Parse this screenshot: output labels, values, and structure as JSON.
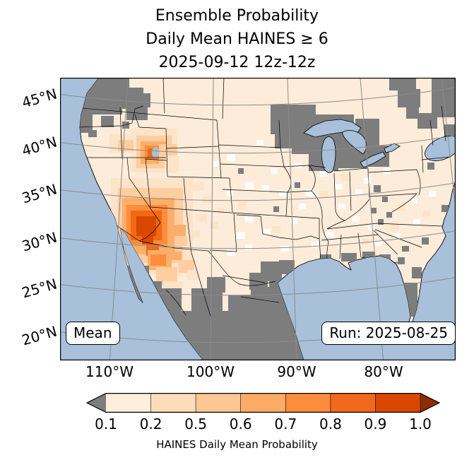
{
  "title": {
    "line1": "Ensemble Probability",
    "line2": "Daily Mean HAINES ≥ 6",
    "line3": "2025-09-12 12z-12z"
  },
  "map": {
    "lat_labels": [
      "45°N",
      "40°N",
      "35°N",
      "30°N",
      "25°N",
      "20°N"
    ],
    "lon_labels": [
      "110°W",
      "100°W",
      "90°W",
      "80°W"
    ],
    "mean_label": "Mean",
    "run_label": "Run: 2025-08-25"
  },
  "colorbar": {
    "ticks": [
      "0.1",
      "0.2",
      "0.5",
      "0.6",
      "0.7",
      "0.8",
      "0.9",
      "1.0"
    ],
    "label": "HAINES Daily Mean Probability",
    "segment_colors": [
      "#feeedd",
      "#fddcbc",
      "#fdc793",
      "#fdab67",
      "#fd8c3c",
      "#f1691d",
      "#d94801"
    ],
    "under_color": "#7d7d7d",
    "over_color": "#8c2d04"
  },
  "palette": {
    "ocean": "#a8c0da",
    "land": "#fcecd9",
    "w": "#fffdf9",
    "c2": "#fde3c8",
    "c3": "#fdce9f",
    "c4": "#fdae6b",
    "c5": "#fd8d3c",
    "c6": "#f16913",
    "c7": "#d94801",
    "g": "#7d7d7d",
    "grid": "#8c8c8c"
  },
  "chart_data": {
    "type": "heatmap",
    "title": "Ensemble Probability Daily Mean HAINES ≥ 6 2025-09-12 12z-12z",
    "statistic": "Mean",
    "run": "2025-08-25",
    "valid_period": "2025-09-12 12z-12z",
    "variable": "HAINES Daily Mean Probability",
    "colorbar_bounds": [
      0.1,
      0.2,
      0.5,
      0.6,
      0.7,
      0.8,
      0.9,
      1.0
    ],
    "colorbar_extended_below": true,
    "colorbar_extended_above": true,
    "graticule_lats": [
      20,
      25,
      30,
      35,
      40,
      45
    ],
    "graticule_lons": [
      -110,
      -100,
      -90,
      -80
    ],
    "high_probability_regions": [
      "Southern California / western Arizona (0.7-1.0)",
      "Central Nevada / western Utah (0.5-0.9)",
      "Northwestern Mexico / Sonora (0.5-0.8)"
    ],
    "gray_no_data_regions": [
      "Pacific Northwest / northern Rockies",
      "Upper Midwest / Great Lakes",
      "Northeast / New England",
      "Southern Florida and Gulf Coast",
      "Southern Texas and interior Mexico"
    ]
  },
  "map_cells": [
    [
      72,
      142,
      116,
      136,
      "c2"
    ],
    [
      82,
      156,
      92,
      106,
      "c3"
    ],
    [
      88,
      170,
      74,
      80,
      "c4"
    ],
    [
      94,
      180,
      58,
      56,
      "c5"
    ],
    [
      100,
      188,
      44,
      42,
      "c6"
    ],
    [
      108,
      196,
      28,
      28,
      "c7"
    ],
    [
      116,
      222,
      16,
      14,
      "c7"
    ],
    [
      122,
      236,
      18,
      16,
      "c6"
    ],
    [
      124,
      244,
      34,
      28,
      "c4"
    ],
    [
      128,
      250,
      22,
      16,
      "c5"
    ],
    [
      136,
      268,
      30,
      26,
      "c3"
    ],
    [
      146,
      288,
      28,
      24,
      "c2"
    ],
    [
      152,
      208,
      26,
      20,
      "c4"
    ],
    [
      162,
      224,
      18,
      14,
      "c3"
    ],
    [
      174,
      238,
      14,
      12,
      "c2"
    ],
    [
      100,
      72,
      66,
      62,
      "c2"
    ],
    [
      108,
      82,
      50,
      46,
      "c3"
    ],
    [
      114,
      90,
      36,
      32,
      "c4"
    ],
    [
      120,
      96,
      24,
      20,
      "c5"
    ],
    [
      124,
      100,
      14,
      12,
      "c6"
    ],
    [
      140,
      94,
      26,
      30,
      "c3"
    ],
    [
      148,
      110,
      20,
      22,
      "c2"
    ],
    [
      70,
      80,
      36,
      26,
      "c2"
    ],
    [
      82,
      88,
      22,
      16,
      "c3"
    ],
    [
      188,
      148,
      16,
      12,
      "c2"
    ],
    [
      202,
      168,
      12,
      10,
      "c2"
    ],
    [
      192,
      192,
      16,
      12,
      "c2"
    ],
    [
      212,
      204,
      12,
      10,
      "c2"
    ],
    [
      186,
      216,
      12,
      10,
      "c2"
    ],
    [
      222,
      184,
      10,
      8,
      "c2"
    ],
    [
      168,
      258,
      22,
      18,
      "c3"
    ],
    [
      158,
      246,
      14,
      12,
      "c4"
    ],
    [
      180,
      272,
      16,
      14,
      "c2"
    ],
    [
      236,
      108,
      12,
      10,
      "w"
    ],
    [
      262,
      148,
      12,
      10,
      "w"
    ],
    [
      298,
      128,
      10,
      8,
      "w"
    ],
    [
      348,
      158,
      12,
      10,
      "w"
    ],
    [
      248,
      218,
      14,
      10,
      "w"
    ],
    [
      326,
      198,
      10,
      8,
      "w"
    ],
    [
      278,
      88,
      10,
      8,
      "w"
    ],
    [
      376,
      218,
      12,
      8,
      "w"
    ],
    [
      418,
      158,
      10,
      8,
      "w"
    ],
    [
      458,
      128,
      10,
      8,
      "w"
    ],
    [
      496,
      170,
      10,
      8,
      "w"
    ],
    [
      394,
      178,
      10,
      8,
      "w"
    ],
    [
      312,
      238,
      12,
      8,
      "w"
    ],
    [
      356,
      232,
      10,
      8,
      "w"
    ],
    [
      236,
      160,
      10,
      8,
      "w"
    ],
    [
      262,
      196,
      12,
      8,
      "w"
    ],
    [
      286,
      152,
      10,
      8,
      "w"
    ],
    [
      236,
      244,
      12,
      8,
      "w"
    ],
    [
      216,
      118,
      10,
      8,
      "w"
    ],
    [
      332,
      120,
      10,
      8,
      "w"
    ],
    [
      368,
      132,
      10,
      8,
      "w"
    ],
    [
      390,
      150,
      10,
      8,
      "w"
    ],
    [
      430,
      142,
      10,
      8,
      "w"
    ],
    [
      446,
      230,
      10,
      8,
      "w"
    ],
    [
      472,
      220,
      10,
      8,
      "w"
    ],
    [
      500,
      200,
      10,
      8,
      "w"
    ],
    [
      522,
      160,
      10,
      8,
      "w"
    ],
    [
      262,
      236,
      10,
      8,
      "w"
    ],
    [
      310,
      160,
      10,
      8,
      "w"
    ],
    [
      288,
      214,
      10,
      8,
      "w"
    ],
    [
      338,
      178,
      10,
      8,
      "w"
    ],
    [
      414,
      196,
      10,
      8,
      "w"
    ],
    [
      436,
      208,
      10,
      8,
      "w"
    ],
    [
      398,
      136,
      12,
      10,
      "c2"
    ],
    [
      468,
      206,
      12,
      10,
      "c2"
    ],
    [
      428,
      228,
      10,
      8,
      "c2"
    ],
    [
      514,
      188,
      10,
      8,
      "c2"
    ],
    [
      478,
      180,
      10,
      8,
      "c2"
    ],
    [
      368,
      160,
      12,
      10,
      "c2"
    ],
    [
      300,
      210,
      12,
      10,
      "c2"
    ],
    [
      252,
      176,
      12,
      10,
      "c2"
    ],
    [
      18,
      0,
      80,
      34,
      "g"
    ],
    [
      26,
      30,
      62,
      22,
      "g"
    ],
    [
      72,
      14,
      46,
      30,
      "g"
    ],
    [
      24,
      52,
      22,
      26,
      "g"
    ],
    [
      94,
      34,
      30,
      26,
      "g"
    ],
    [
      58,
      54,
      18,
      16,
      "g"
    ],
    [
      112,
      22,
      16,
      20,
      "g"
    ],
    [
      88,
      62,
      10,
      10,
      "g"
    ],
    [
      40,
      74,
      12,
      10,
      "g"
    ],
    [
      298,
      38,
      64,
      42,
      "g"
    ],
    [
      328,
      72,
      62,
      36,
      "g"
    ],
    [
      358,
      52,
      58,
      46,
      "g"
    ],
    [
      388,
      92,
      48,
      36,
      "g"
    ],
    [
      352,
      102,
      42,
      30,
      "g"
    ],
    [
      418,
      58,
      34,
      44,
      "g"
    ],
    [
      434,
      96,
      32,
      30,
      "g"
    ],
    [
      304,
      80,
      26,
      20,
      "g"
    ],
    [
      466,
      0,
      38,
      18,
      "g"
    ],
    [
      478,
      16,
      32,
      26,
      "g"
    ],
    [
      506,
      50,
      28,
      22,
      "g"
    ],
    [
      526,
      0,
      34,
      56,
      "g"
    ],
    [
      544,
      66,
      16,
      20,
      "g"
    ],
    [
      490,
      42,
      18,
      16,
      "g"
    ],
    [
      444,
      152,
      10,
      10,
      "g"
    ],
    [
      456,
      168,
      8,
      8,
      "g"
    ],
    [
      440,
      184,
      8,
      8,
      "g"
    ],
    [
      462,
      190,
      8,
      8,
      "g"
    ],
    [
      450,
      200,
      8,
      8,
      "g"
    ],
    [
      468,
      290,
      38,
      48,
      "g"
    ],
    [
      498,
      268,
      14,
      16,
      "g"
    ],
    [
      478,
      254,
      10,
      10,
      "g"
    ],
    [
      508,
      300,
      10,
      14,
      "g"
    ],
    [
      368,
      250,
      16,
      10,
      "g"
    ],
    [
      398,
      248,
      22,
      12,
      "g"
    ],
    [
      428,
      246,
      18,
      10,
      "g"
    ],
    [
      452,
      250,
      16,
      10,
      "g"
    ],
    [
      484,
      238,
      10,
      8,
      "g"
    ],
    [
      284,
      260,
      30,
      28,
      "g"
    ],
    [
      296,
      288,
      44,
      58,
      "g"
    ],
    [
      270,
      296,
      30,
      34,
      "g"
    ],
    [
      148,
      330,
      200,
      70,
      "g"
    ],
    [
      186,
      298,
      44,
      34,
      "g"
    ],
    [
      238,
      308,
      52,
      32,
      "g"
    ],
    [
      268,
      276,
      26,
      24,
      "g"
    ],
    [
      140,
      298,
      32,
      36,
      "g"
    ],
    [
      92,
      266,
      34,
      56,
      "g"
    ],
    [
      120,
      288,
      24,
      28,
      "g"
    ],
    [
      208,
      282,
      26,
      22,
      "g"
    ],
    [
      310,
      258,
      22,
      20,
      "g"
    ],
    [
      252,
      128,
      8,
      8,
      "g"
    ],
    [
      332,
      148,
      8,
      8,
      "g"
    ],
    [
      302,
      182,
      8,
      8,
      "g"
    ],
    [
      520,
      120,
      10,
      10,
      "g"
    ],
    [
      540,
      180,
      10,
      10,
      "g"
    ],
    [
      512,
      226,
      10,
      10,
      "g"
    ]
  ]
}
